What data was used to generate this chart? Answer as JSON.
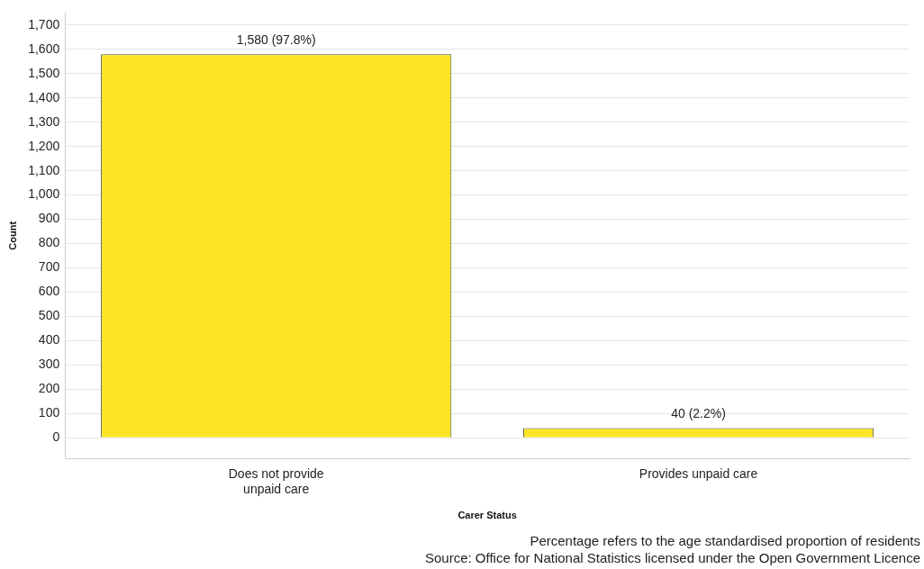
{
  "chart_data": {
    "type": "bar",
    "xlabel": "Carer Status",
    "ylabel": "Count",
    "categories": [
      "Does not provide unpaid care",
      "Provides unpaid care"
    ],
    "values": [
      1580,
      40
    ],
    "color": "#fce524",
    "value_labels": [
      "1,580 (97.8%)",
      "40 (2.2%)"
    ],
    "ylim": [
      -85,
      1750
    ],
    "yticks": [
      0,
      100,
      200,
      300,
      400,
      500,
      600,
      700,
      800,
      900,
      {
        "value": 1000,
        "label": "1,000"
      },
      {
        "value": 1100,
        "label": "1,100"
      },
      {
        "value": 1200,
        "label": "1,200"
      },
      {
        "value": 1300,
        "label": "1,300"
      },
      {
        "value": 1400,
        "label": "1,400"
      },
      {
        "value": 1500,
        "label": "1,500"
      },
      {
        "value": 1600,
        "label": "1,600"
      },
      {
        "value": 1700,
        "label": "1,700"
      }
    ],
    "grid": "y",
    "legend": false,
    "annotations": [
      "Percentage refers to the age standardised proportion of residents",
      "Source: Office for National Statistics licensed under the Open Government Licence"
    ]
  }
}
